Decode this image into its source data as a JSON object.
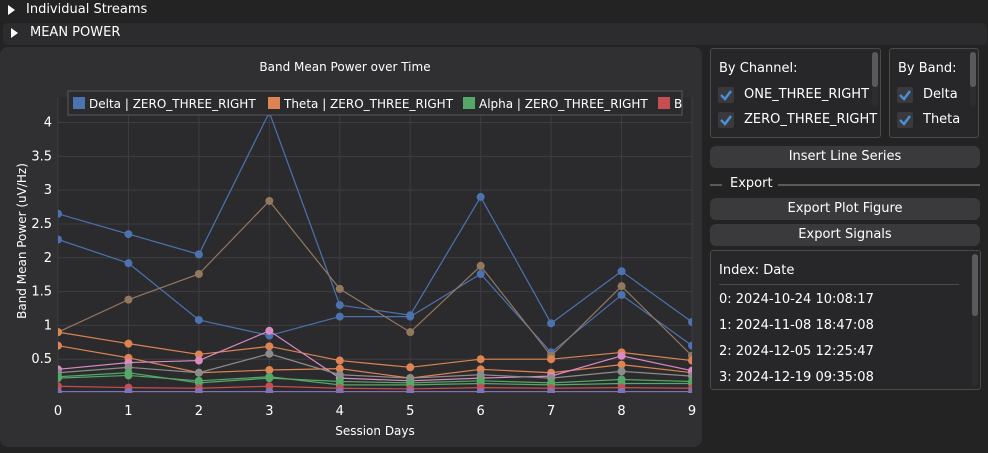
{
  "headers": {
    "individual_streams": "Individual Streams",
    "mean_power": "MEAN POWER"
  },
  "by_channel": {
    "title": "By Channel:",
    "items": [
      {
        "label": "ONE_THREE_RIGHT",
        "checked": true
      },
      {
        "label": "ZERO_THREE_RIGHT",
        "checked": true
      }
    ]
  },
  "by_band": {
    "title": "By Band:",
    "items": [
      {
        "label": "Delta",
        "checked": true
      },
      {
        "label": "Theta",
        "checked": true
      }
    ]
  },
  "buttons": {
    "insert_line_series": "Insert Line Series",
    "export_plot_figure": "Export Plot Figure",
    "export_signals": "Export Signals"
  },
  "export_section_label": "Export",
  "index_list": {
    "header": "Index: Date",
    "items": [
      "0: 2024-10-24 10:08:17",
      "1: 2024-11-08 18:47:08",
      "2: 2024-12-05 12:25:47",
      "3: 2024-12-19 09:35:08"
    ]
  },
  "colors": {
    "background": "#232324",
    "panel": "#303033",
    "button": "#3a3a3d",
    "check": "#4c8ed9"
  },
  "chart_data": {
    "type": "line",
    "title": "Band Mean Power over Time",
    "xlabel": "Session Days",
    "ylabel": "Band Mean Power (uV/Hz)",
    "xlim": [
      0,
      9
    ],
    "ylim": [
      0,
      4.2
    ],
    "x_ticks": [
      "0",
      "1",
      "2",
      "3",
      "4",
      "5",
      "6",
      "7",
      "8",
      "9"
    ],
    "y_ticks": [
      "0.5",
      "1",
      "1.5",
      "2",
      "2.5",
      "3",
      "3.5",
      "4"
    ],
    "grid": true,
    "legend_position": "top",
    "legend": [
      {
        "label": "Delta | ZERO_THREE_RIGHT",
        "color": "#4c72b0"
      },
      {
        "label": "Theta | ZERO_THREE_RIGHT",
        "color": "#dd8452"
      },
      {
        "label": "Alpha | ZERO_THREE_RIGHT",
        "color": "#55a868"
      },
      {
        "label": "Be",
        "color": "#c44e52"
      }
    ],
    "x": [
      0,
      1,
      2,
      3,
      4,
      5,
      6,
      7,
      8,
      9
    ],
    "series": [
      {
        "color": "#4c72b0",
        "values": [
          2.65,
          2.35,
          2.05,
          4.15,
          1.3,
          1.15,
          2.9,
          1.03,
          1.8,
          1.05
        ]
      },
      {
        "color": "#4c72b0",
        "values": [
          2.27,
          1.92,
          1.08,
          0.85,
          1.13,
          1.13,
          1.76,
          0.6,
          1.45,
          0.7
        ]
      },
      {
        "color": "#937860",
        "values": [
          0.9,
          1.38,
          1.76,
          2.84,
          1.54,
          0.9,
          1.88,
          0.55,
          1.58,
          0.55
        ]
      },
      {
        "color": "#dd8452",
        "values": [
          0.9,
          0.73,
          0.57,
          0.69,
          0.48,
          0.38,
          0.5,
          0.5,
          0.6,
          0.48
        ]
      },
      {
        "color": "#dd8452",
        "values": [
          0.7,
          0.52,
          0.3,
          0.34,
          0.36,
          0.22,
          0.35,
          0.3,
          0.42,
          0.3
        ]
      },
      {
        "color": "#da8bc3",
        "values": [
          0.35,
          0.45,
          0.48,
          0.92,
          0.22,
          0.18,
          0.22,
          0.25,
          0.55,
          0.33
        ]
      },
      {
        "color": "#8c8c8c",
        "values": [
          0.3,
          0.38,
          0.3,
          0.58,
          0.27,
          0.22,
          0.27,
          0.22,
          0.32,
          0.25
        ]
      },
      {
        "color": "#55a868",
        "values": [
          0.24,
          0.3,
          0.15,
          0.22,
          0.17,
          0.15,
          0.18,
          0.15,
          0.2,
          0.17
        ]
      },
      {
        "color": "#55a868",
        "values": [
          0.22,
          0.26,
          0.18,
          0.24,
          0.12,
          0.12,
          0.14,
          0.12,
          0.14,
          0.14
        ]
      },
      {
        "color": "#c44e52",
        "values": [
          0.1,
          0.08,
          0.07,
          0.1,
          0.07,
          0.06,
          0.08,
          0.07,
          0.08,
          0.07
        ]
      },
      {
        "color": "#8172b3",
        "values": [
          0.02,
          0.02,
          0.02,
          0.02,
          0.02,
          0.02,
          0.02,
          0.02,
          0.02,
          0.02
        ]
      }
    ]
  }
}
